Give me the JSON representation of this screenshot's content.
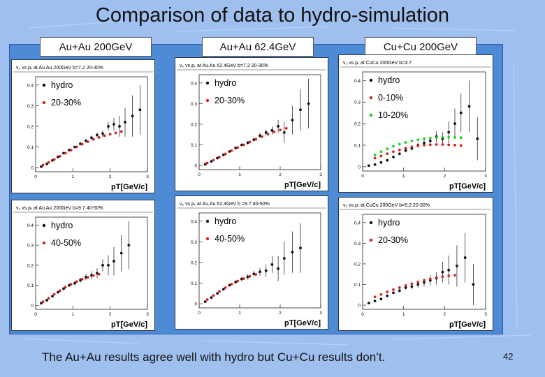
{
  "slide": {
    "title": "Comparison of data to hydro-simulation",
    "columns": [
      "Au+Au 200GeV",
      "Au+Au 62.4GeV",
      "Cu+Cu 200GeV"
    ],
    "footer": "The Au+Au results agree well with hydro but  Cu+Cu results don’t.",
    "page_number": "42"
  },
  "colors": {
    "background": "#9fc0ee",
    "panel": "#4d8bd6",
    "data": "#111111",
    "centrality_a": "#d62020",
    "centrality_b": "#22cc22"
  },
  "chart_data": [
    {
      "type": "scatter",
      "title": "v₂ vs.pₜ at Au.Au 200GeV b=7.2 20-30%",
      "xlabel": "pT[GeV/c]",
      "ylabel": "",
      "xlim": [
        0,
        3
      ],
      "ylim": [
        -0.02,
        0.44
      ],
      "xticks": [
        "0",
        "1",
        "2",
        "3"
      ],
      "yticks": [
        "0",
        "0.1",
        "0.2",
        "0.3",
        "0.4"
      ],
      "legend": [
        "hydro",
        "20-30%"
      ],
      "series": [
        {
          "name": "hydro",
          "color": "#111111",
          "marker": "circle",
          "x": [
            0.15,
            0.3,
            0.45,
            0.6,
            0.75,
            0.9,
            1.05,
            1.2,
            1.35,
            1.5,
            1.65,
            1.8,
            1.95,
            2.1,
            2.25,
            2.4,
            2.6,
            2.8
          ],
          "y": [
            0.005,
            0.018,
            0.035,
            0.052,
            0.07,
            0.085,
            0.1,
            0.115,
            0.13,
            0.145,
            0.158,
            0.165,
            0.2,
            0.21,
            0.2,
            0.22,
            0.25,
            0.28
          ],
          "err": [
            0.003,
            0.003,
            0.003,
            0.003,
            0.004,
            0.004,
            0.005,
            0.006,
            0.008,
            0.01,
            0.012,
            0.015,
            0.02,
            0.03,
            0.05,
            0.07,
            0.1,
            0.12
          ]
        },
        {
          "name": "20-30%",
          "color": "#d62020",
          "marker": "circle",
          "x": [
            0.2,
            0.35,
            0.5,
            0.65,
            0.8,
            0.95,
            1.1,
            1.25,
            1.4,
            1.55,
            1.7,
            1.85,
            2.0,
            2.15,
            2.3
          ],
          "y": [
            0.012,
            0.025,
            0.04,
            0.055,
            0.07,
            0.085,
            0.1,
            0.113,
            0.125,
            0.137,
            0.146,
            0.155,
            0.162,
            0.168,
            0.175
          ]
        }
      ]
    },
    {
      "type": "scatter",
      "title": "v₂ vs.pₜ at Au.Au 62.4GeV b=7.2 20-30%",
      "xlabel": "pT[GeV/c]",
      "ylabel": "",
      "xlim": [
        0,
        3
      ],
      "ylim": [
        -0.02,
        0.44
      ],
      "xticks": [
        "0",
        "1",
        "2",
        "3"
      ],
      "yticks": [
        "0",
        "0.1",
        "0.2",
        "0.3",
        "0.4"
      ],
      "legend": [
        "hydro",
        "20-30%"
      ],
      "series": [
        {
          "name": "hydro",
          "color": "#111111",
          "marker": "circle",
          "x": [
            0.15,
            0.3,
            0.45,
            0.6,
            0.75,
            0.9,
            1.05,
            1.2,
            1.35,
            1.5,
            1.65,
            1.8,
            1.95,
            2.1,
            2.3,
            2.5,
            2.7
          ],
          "y": [
            0.006,
            0.02,
            0.036,
            0.052,
            0.068,
            0.085,
            0.1,
            0.11,
            0.125,
            0.145,
            0.16,
            0.17,
            0.19,
            0.16,
            0.22,
            0.27,
            0.3
          ],
          "err": [
            0.003,
            0.003,
            0.003,
            0.004,
            0.004,
            0.005,
            0.006,
            0.008,
            0.01,
            0.012,
            0.015,
            0.02,
            0.03,
            0.05,
            0.07,
            0.1,
            0.12
          ]
        },
        {
          "name": "20-30%",
          "color": "#d62020",
          "marker": "circle",
          "x": [
            0.2,
            0.35,
            0.5,
            0.65,
            0.8,
            0.95,
            1.1,
            1.25,
            1.4,
            1.55,
            1.7,
            1.85,
            2.0,
            2.15
          ],
          "y": [
            0.012,
            0.026,
            0.041,
            0.056,
            0.072,
            0.087,
            0.1,
            0.114,
            0.127,
            0.14,
            0.152,
            0.163,
            0.172,
            0.18
          ]
        }
      ]
    },
    {
      "type": "scatter",
      "title": "v₂ vs.pₜ at CuCu 200GeV b=3.7",
      "xlabel": "pT[GeV/c]",
      "ylabel": "",
      "xlim": [
        0,
        3
      ],
      "ylim": [
        -0.02,
        0.44
      ],
      "xticks": [
        "0",
        "1",
        "2",
        "3"
      ],
      "yticks": [
        "0",
        "0.1",
        "0.2",
        "0.3",
        "0.4"
      ],
      "legend": [
        "hydro",
        "0-10%",
        "10-20%"
      ],
      "series": [
        {
          "name": "hydro",
          "color": "#111111",
          "marker": "circle",
          "x": [
            0.15,
            0.3,
            0.45,
            0.6,
            0.75,
            0.9,
            1.05,
            1.2,
            1.35,
            1.5,
            1.65,
            1.8,
            1.95,
            2.1,
            2.25,
            2.4,
            2.6,
            2.8
          ],
          "y": [
            0.005,
            0.01,
            0.02,
            0.03,
            0.045,
            0.06,
            0.075,
            0.085,
            0.1,
            0.11,
            0.12,
            0.14,
            0.13,
            0.16,
            0.2,
            0.25,
            0.28,
            0.13
          ],
          "err": [
            0.003,
            0.003,
            0.004,
            0.004,
            0.005,
            0.006,
            0.008,
            0.01,
            0.012,
            0.015,
            0.02,
            0.025,
            0.03,
            0.05,
            0.07,
            0.09,
            0.12,
            0.1
          ]
        },
        {
          "name": "0-10%",
          "color": "#d62020",
          "marker": "circle",
          "x": [
            0.3,
            0.45,
            0.6,
            0.75,
            0.9,
            1.05,
            1.2,
            1.35,
            1.5,
            1.65,
            1.8,
            1.95,
            2.1,
            2.25,
            2.4
          ],
          "y": [
            0.04,
            0.05,
            0.06,
            0.07,
            0.078,
            0.086,
            0.092,
            0.097,
            0.1,
            0.102,
            0.103,
            0.103,
            0.102,
            0.1,
            0.098
          ]
        },
        {
          "name": "10-20%",
          "color": "#22cc22",
          "marker": "circle",
          "x": [
            0.3,
            0.45,
            0.6,
            0.75,
            0.9,
            1.05,
            1.2,
            1.35,
            1.5,
            1.65,
            1.8,
            1.95,
            2.1,
            2.25,
            2.4
          ],
          "y": [
            0.055,
            0.07,
            0.083,
            0.095,
            0.105,
            0.113,
            0.12,
            0.125,
            0.13,
            0.133,
            0.135,
            0.137,
            0.137,
            0.136,
            0.135
          ]
        }
      ]
    },
    {
      "type": "scatter",
      "title": "v₂ vs.pₜ at Au.Au 200GeV b=9.7 40-50%",
      "xlabel": "pT[GeV/c]",
      "ylabel": "",
      "xlim": [
        0,
        3
      ],
      "ylim": [
        -0.02,
        0.44
      ],
      "xticks": [
        "0",
        "1",
        "2",
        "3"
      ],
      "yticks": [
        "0",
        "0.1",
        "0.2",
        "0.3",
        "0.4"
      ],
      "legend": [
        "hydro",
        "40-50%"
      ],
      "series": [
        {
          "name": "hydro",
          "color": "#111111",
          "marker": "circle",
          "x": [
            0.15,
            0.3,
            0.45,
            0.6,
            0.75,
            0.9,
            1.05,
            1.2,
            1.35,
            1.5,
            1.65,
            1.8,
            1.95,
            2.1,
            2.3,
            2.5
          ],
          "y": [
            0.01,
            0.025,
            0.045,
            0.065,
            0.083,
            0.1,
            0.11,
            0.125,
            0.14,
            0.15,
            0.16,
            0.2,
            0.2,
            0.22,
            0.26,
            0.3
          ],
          "err": [
            0.003,
            0.003,
            0.004,
            0.005,
            0.006,
            0.008,
            0.01,
            0.012,
            0.015,
            0.02,
            0.025,
            0.03,
            0.05,
            0.07,
            0.09,
            0.12
          ]
        },
        {
          "name": "40-50%",
          "color": "#d62020",
          "marker": "circle",
          "x": [
            0.2,
            0.35,
            0.5,
            0.65,
            0.8,
            0.95,
            1.1,
            1.25,
            1.4,
            1.55,
            1.7
          ],
          "y": [
            0.018,
            0.035,
            0.055,
            0.073,
            0.09,
            0.105,
            0.118,
            0.13,
            0.14,
            0.148,
            0.155
          ]
        }
      ]
    },
    {
      "type": "scatter",
      "title": "v₂ vs.pₜ at Au.Au 62.4GeV b =9.7 40-50%",
      "xlabel": "pT[GeV/c]",
      "ylabel": "",
      "xlim": [
        0,
        3
      ],
      "ylim": [
        -0.02,
        0.44
      ],
      "xticks": [
        "0",
        "1",
        "2",
        "3"
      ],
      "yticks": [
        "0",
        "0.1",
        "0.2",
        "0.3",
        "0.4"
      ],
      "legend": [
        "hydro",
        "40-50%"
      ],
      "series": [
        {
          "name": "hydro",
          "color": "#111111",
          "marker": "circle",
          "x": [
            0.15,
            0.3,
            0.45,
            0.6,
            0.75,
            0.9,
            1.05,
            1.2,
            1.35,
            1.5,
            1.65,
            1.8,
            1.95,
            2.1,
            2.3,
            2.5
          ],
          "y": [
            0.01,
            0.03,
            0.05,
            0.07,
            0.09,
            0.105,
            0.12,
            0.13,
            0.145,
            0.155,
            0.16,
            0.19,
            0.17,
            0.22,
            0.25,
            0.27
          ],
          "err": [
            0.003,
            0.003,
            0.004,
            0.005,
            0.006,
            0.008,
            0.01,
            0.012,
            0.015,
            0.02,
            0.03,
            0.04,
            0.06,
            0.08,
            0.1,
            0.12
          ]
        },
        {
          "name": "40-50%",
          "color": "#d62020",
          "marker": "circle",
          "x": [
            0.2,
            0.35,
            0.5,
            0.65,
            0.8,
            0.95,
            1.1,
            1.25,
            1.4
          ],
          "y": [
            0.02,
            0.04,
            0.06,
            0.078,
            0.095,
            0.11,
            0.122,
            0.133,
            0.142
          ]
        }
      ]
    },
    {
      "type": "scatter",
      "title": "v₂ vs.pₜ at CuCu 200GeV b=5.2 20-30%",
      "xlabel": "pT[GeV/c]",
      "ylabel": "",
      "xlim": [
        0,
        3
      ],
      "ylim": [
        -0.02,
        0.44
      ],
      "xticks": [
        "0",
        "1",
        "2",
        "3"
      ],
      "yticks": [
        "0",
        "0.1",
        "0.2",
        "0.3",
        "0.4"
      ],
      "legend": [
        "hydro",
        "20-30%"
      ],
      "series": [
        {
          "name": "hydro",
          "color": "#111111",
          "marker": "circle",
          "x": [
            0.15,
            0.3,
            0.45,
            0.6,
            0.75,
            0.9,
            1.05,
            1.2,
            1.35,
            1.5,
            1.65,
            1.8,
            1.95,
            2.1,
            2.3,
            2.5,
            2.7
          ],
          "y": [
            0.01,
            0.02,
            0.03,
            0.045,
            0.06,
            0.07,
            0.085,
            0.09,
            0.1,
            0.11,
            0.12,
            0.13,
            0.16,
            0.17,
            0.19,
            0.23,
            0.1
          ],
          "err": [
            0.003,
            0.003,
            0.004,
            0.005,
            0.006,
            0.008,
            0.01,
            0.012,
            0.015,
            0.02,
            0.025,
            0.03,
            0.05,
            0.07,
            0.1,
            0.12,
            0.1
          ]
        },
        {
          "name": "20-30%",
          "color": "#d62020",
          "marker": "circle",
          "x": [
            0.3,
            0.45,
            0.6,
            0.75,
            0.9,
            1.05,
            1.2,
            1.35,
            1.5,
            1.65,
            1.8,
            1.95,
            2.1,
            2.25
          ],
          "y": [
            0.04,
            0.052,
            0.064,
            0.075,
            0.085,
            0.095,
            0.104,
            0.112,
            0.12,
            0.127,
            0.133,
            0.138,
            0.142,
            0.145
          ]
        }
      ]
    }
  ]
}
